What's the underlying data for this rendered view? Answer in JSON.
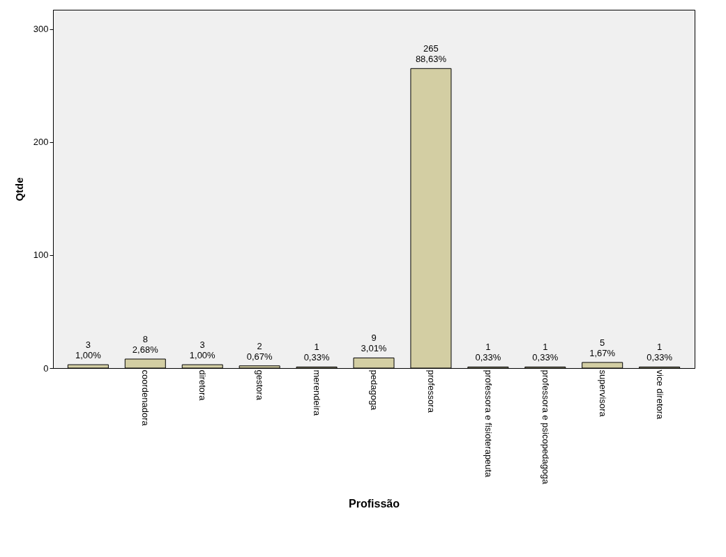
{
  "chart_data": {
    "type": "bar",
    "xlabel": "Profissão",
    "ylabel": "Qtde",
    "categories": [
      null,
      "coordenadora",
      "diretora",
      "gestora",
      "merendeira",
      "pedagoga",
      "professora",
      "professora e fisioterapeuta",
      "professora e psicopedagoga",
      "supervisora",
      "vice diretora"
    ],
    "values": [
      3,
      8,
      3,
      2,
      1,
      9,
      265,
      1,
      1,
      5,
      1
    ],
    "value_labels": [
      "3\n1,00%",
      "8\n2,68%",
      "3\n1,00%",
      "2\n0,67%",
      "1\n0,33%",
      "9\n3,01%",
      "265\n88,63%",
      "1\n0,33%",
      "1\n0,33%",
      "5\n1,67%",
      "1\n0,33%"
    ],
    "color": "#d3cea3",
    "ylim": [
      0,
      317
    ],
    "yticks": [
      0,
      100,
      200,
      300
    ],
    "grid": false
  }
}
